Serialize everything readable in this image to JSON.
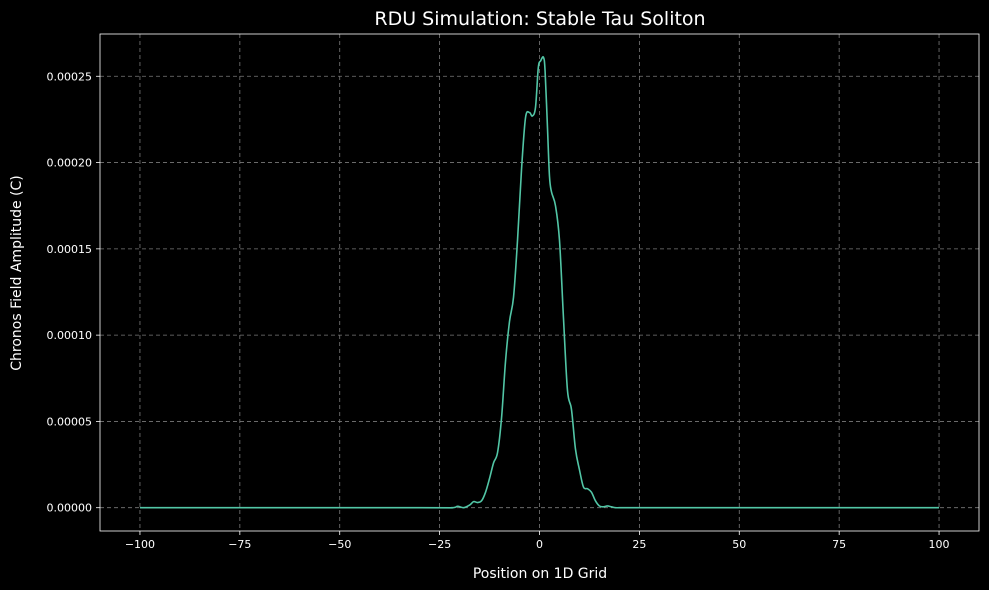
{
  "chart_data": {
    "type": "line",
    "title": "RDU Simulation: Stable Tau Soliton",
    "xlabel": "Position on 1D Grid",
    "ylabel": "Chronos Field Amplitude (C)",
    "xlim": [
      -110,
      110
    ],
    "ylim": [
      -1.35e-05,
      0.0002745
    ],
    "grid": true,
    "background": "#000000",
    "foreground": "#ffffff",
    "grid_color": "#7a7a7a",
    "line_color": "#52c6a6",
    "x_ticks": [
      -100,
      -75,
      -50,
      -25,
      0,
      25,
      50,
      75,
      100
    ],
    "x_tick_labels": [
      "−100",
      "−75",
      "−50",
      "−25",
      "0",
      "25",
      "50",
      "75",
      "100"
    ],
    "y_ticks": [
      0,
      5e-05,
      0.0001,
      0.00015,
      0.0002,
      0.00025
    ],
    "y_tick_labels": [
      "0.00000",
      "0.00005",
      "0.00010",
      "0.00015",
      "0.00020",
      "0.00025"
    ],
    "series": [
      {
        "x": [
          -100,
          -30,
          -22,
          -20.5,
          -19,
          -17.5,
          -16.5,
          -15.5,
          -14.5,
          -13.5,
          -12.5,
          -11.5,
          -10.5,
          -9.5,
          -8.5,
          -7.5,
          -6.5,
          -5.5,
          -4.5,
          -3.5,
          -2.5,
          -1.8,
          -1.0,
          -0.3,
          0.3,
          1.0,
          1.4,
          2.0,
          2.5,
          3.0,
          4.0,
          5.0,
          6.0,
          7.0,
          8.0,
          9.0,
          10.0,
          11.0,
          12.0,
          13.0,
          14.0,
          15.0,
          16.0,
          17.0,
          18.0,
          19.0,
          20.0,
          22.0,
          30.0,
          100.0
        ],
        "y": [
          0,
          0,
          0,
          8e-07,
          0,
          1.5e-06,
          3.5e-06,
          3e-06,
          4e-06,
          9e-06,
          1.7e-05,
          2.6e-05,
          3.2e-05,
          5.2e-05,
          8.5e-05,
          0.000108,
          0.000122,
          0.000155,
          0.000196,
          0.000226,
          0.000229,
          0.000227,
          0.000232,
          0.000255,
          0.000259,
          0.000261,
          0.000253,
          0.00022,
          0.000192,
          0.000183,
          0.000175,
          0.000155,
          0.00011,
          6.8e-05,
          5.7e-05,
          3.4e-05,
          2.2e-05,
          1.2e-05,
          1.1e-05,
          9e-06,
          4e-06,
          1e-06,
          5e-07,
          1e-06,
          5e-07,
          0,
          0,
          0,
          0,
          0
        ]
      }
    ]
  }
}
